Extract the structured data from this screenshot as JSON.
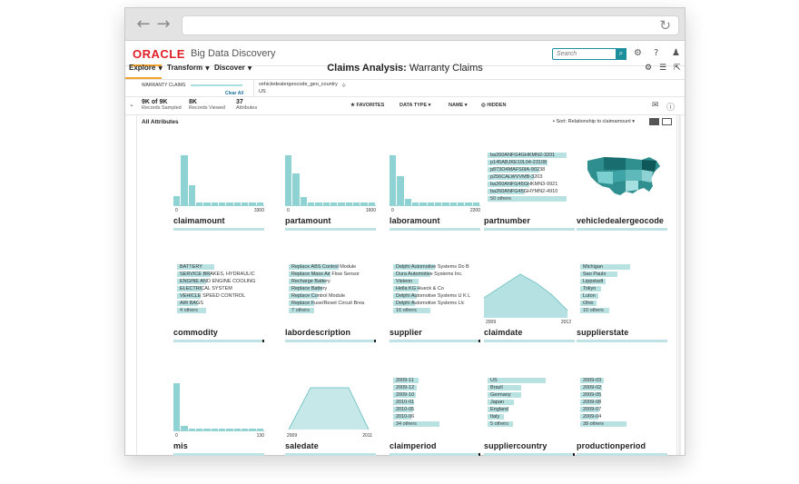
{
  "browser": {
    "back": "←",
    "forward": "→",
    "reload": "↻"
  },
  "header": {
    "logo": "ORACLE",
    "product": "Big Data Discovery",
    "search_placeholder": "Search",
    "search_icon": "magnifier",
    "icons": [
      "gear-icon",
      "help-icon",
      "user-icon"
    ]
  },
  "menu": {
    "items": [
      {
        "label": "Explore"
      },
      {
        "label": "Transform"
      },
      {
        "label": "Discover"
      }
    ],
    "title_bold": "Claims Analysis:",
    "title_rest": " Warranty Claims"
  },
  "breadcrumb": {
    "title": "WARRANTY CLAIMS",
    "clear": "Clear All",
    "attr": "vehicledealergeocode_geo_country",
    "value": "US"
  },
  "stats": [
    {
      "value": "9K of 9K",
      "label": "Records Sampled"
    },
    {
      "value": "8K",
      "label": "Records Viewed"
    },
    {
      "value": "37",
      "label": "Attributes"
    }
  ],
  "toolbar": {
    "favorites": "FAVORITES",
    "datatype": "DATA TYPE",
    "name": "NAME",
    "hidden": "HIDDEN"
  },
  "content": {
    "all_attributes": "All Attributes",
    "sort_label": "Sort:",
    "sort_value": "Relationship to claimamount"
  },
  "colors": {
    "accent": "#1b8f9b",
    "bar": "#8fd2d4",
    "brand": "#e01f26",
    "highlight": "#f4a42a"
  },
  "cards": {
    "claimamount": {
      "name": "claimamount",
      "min": "0",
      "max": "3300",
      "bars": [
        0.18,
        0.95,
        0.38,
        0.06,
        0.05,
        0.05,
        0.05,
        0.05,
        0.05,
        0.05,
        0.05,
        0.05
      ]
    },
    "partamount": {
      "name": "partamount",
      "min": "0",
      "max": "1600",
      "bars": [
        0.95,
        0.6,
        0.15,
        0.05,
        0.05,
        0.05,
        0.05,
        0.05,
        0.05,
        0.05,
        0.05,
        0.05
      ]
    },
    "laboramount": {
      "name": "laboramount",
      "min": "0",
      "max": "2200",
      "bars": [
        0.95,
        0.55,
        0.12,
        0.05,
        0.05,
        0.05,
        0.05,
        0.05,
        0.05,
        0.05,
        0.05,
        0.05
      ]
    },
    "partnumber": {
      "name": "partnumber",
      "items": [
        {
          "label": "ba260ANFG4GHKMN2-3201",
          "frac": 0.95
        },
        {
          "label": "p145ABJKE10L04-23108",
          "frac": 0.72
        },
        {
          "label": "p873O4MAFS0IA-90238",
          "frac": 0.62
        },
        {
          "label": "p256CALWVVMB-3203",
          "frac": 0.55
        },
        {
          "label": "ba260ANFG45GHKMN3-9921",
          "frac": 0.5
        },
        {
          "label": "ba260ANFG45GHYMN2-4910",
          "frac": 0.45
        },
        {
          "label": "50 others",
          "frac": 0.95
        }
      ]
    },
    "vehicledealergeocode": {
      "name": "vehicledealergeocode"
    },
    "commodity": {
      "name": "commodity",
      "items": [
        {
          "label": "BATTERY",
          "frac": 0.45
        },
        {
          "label": "SERVICE BRAKES, HYDRAULIC",
          "frac": 0.4
        },
        {
          "label": "ENGINE AND ENGINE COOLING",
          "frac": 0.35
        },
        {
          "label": "ELECTRICAL SYSTEM",
          "frac": 0.3
        },
        {
          "label": "VEHICLE SPEED CONTROL",
          "frac": 0.28
        },
        {
          "label": "AIR BAGS",
          "frac": 0.25
        },
        {
          "label": "4 others",
          "frac": 0.35
        }
      ]
    },
    "labordescription": {
      "name": "labordescription",
      "items": [
        {
          "label": "Replace ABS Control Module",
          "frac": 0.6
        },
        {
          "label": "Replace Mass Air Flow Sensor",
          "frac": 0.5
        },
        {
          "label": "Recharge Battery",
          "frac": 0.45
        },
        {
          "label": "Replace Battery",
          "frac": 0.4
        },
        {
          "label": "Replace Control Module",
          "frac": 0.35
        },
        {
          "label": "Replace Fuse/Reset Circuit Brea",
          "frac": 0.3
        },
        {
          "label": "7 others",
          "frac": 0.3
        }
      ]
    },
    "supplier": {
      "name": "supplier",
      "items": [
        {
          "label": "Delphi Automotive Systems Do B",
          "frac": 0.5
        },
        {
          "label": "Dura Automotive Systems Inc.",
          "frac": 0.45
        },
        {
          "label": "Visteon",
          "frac": 0.3
        },
        {
          "label": "Hella KG Hueck & Co",
          "frac": 0.3
        },
        {
          "label": "Delphi Automotive Systems U K L",
          "frac": 0.28
        },
        {
          "label": "Delphi Automotive Systems Llc",
          "frac": 0.26
        },
        {
          "label": "16 others",
          "frac": 0.45
        }
      ]
    },
    "claimdate": {
      "name": "claimdate",
      "x_min": "2009",
      "x_max": "2012"
    },
    "supplierstate": {
      "name": "supplierstate",
      "items": [
        {
          "label": "Michigan",
          "frac": 0.6
        },
        {
          "label": "Sao Paulo",
          "frac": 0.45
        },
        {
          "label": "Lippstadt",
          "frac": 0.3
        },
        {
          "label": "Tokyo",
          "frac": 0.25
        },
        {
          "label": "Luton",
          "frac": 0.22
        },
        {
          "label": "Ohio",
          "frac": 0.2
        },
        {
          "label": "10 others",
          "frac": 0.35
        }
      ]
    },
    "mis": {
      "name": "mis",
      "min": "0",
      "max": "130",
      "bars": [
        0.9,
        0.08,
        0.04,
        0.04,
        0.04,
        0.04,
        0.04,
        0.04,
        0.04,
        0.04,
        0.04,
        0.04
      ]
    },
    "saledate": {
      "name": "saledate",
      "x_min": "2009",
      "x_max": "2011"
    },
    "claimperiod": {
      "name": "claimperiod",
      "items": [
        {
          "label": "2009-11",
          "frac": 0.3
        },
        {
          "label": "2009-12",
          "frac": 0.28
        },
        {
          "label": "2009-10",
          "frac": 0.27
        },
        {
          "label": "2010-01",
          "frac": 0.25
        },
        {
          "label": "2010-05",
          "frac": 0.24
        },
        {
          "label": "2010-06",
          "frac": 0.22
        },
        {
          "label": "34 others",
          "frac": 0.55
        }
      ]
    },
    "suppliercountry": {
      "name": "suppliercountry",
      "items": [
        {
          "label": "US",
          "frac": 0.7
        },
        {
          "label": "Brazil",
          "frac": 0.4
        },
        {
          "label": "Germany",
          "frac": 0.4
        },
        {
          "label": "Japan",
          "frac": 0.32
        },
        {
          "label": "England",
          "frac": 0.25
        },
        {
          "label": "Italy",
          "frac": 0.2
        },
        {
          "label": "5 others",
          "frac": 0.3
        }
      ]
    },
    "productionperiod": {
      "name": "productionperiod",
      "items": [
        {
          "label": "2009-03",
          "frac": 0.28
        },
        {
          "label": "2009-02",
          "frac": 0.26
        },
        {
          "label": "2009-05",
          "frac": 0.25
        },
        {
          "label": "2009-08",
          "frac": 0.24
        },
        {
          "label": "2009-07",
          "frac": 0.23
        },
        {
          "label": "2009-04",
          "frac": 0.22
        },
        {
          "label": "38 others",
          "frac": 0.55
        }
      ]
    }
  }
}
